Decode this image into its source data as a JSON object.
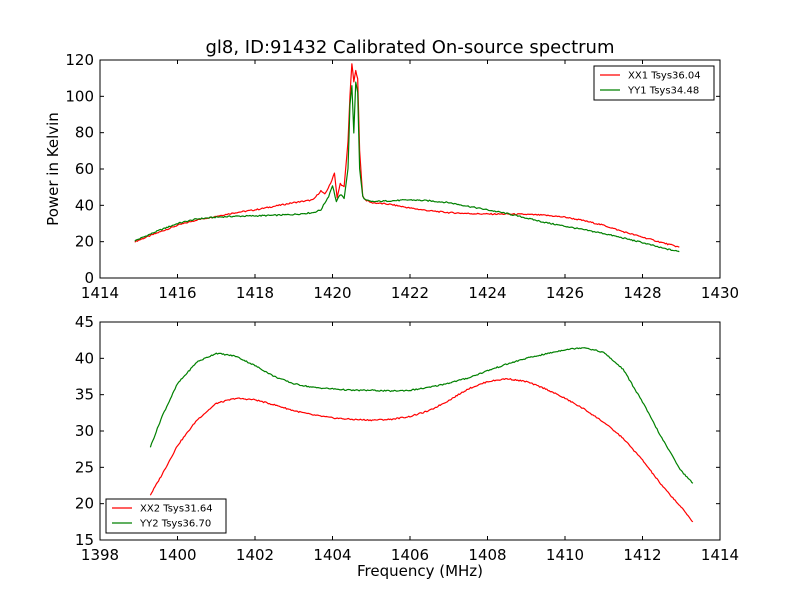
{
  "title": "gl8, ID:91432 Calibrated On-source spectrum",
  "colors": {
    "xx": "#ff0000",
    "yy": "#008000",
    "axes": "#000000"
  },
  "chart_data": [
    {
      "type": "line",
      "ylabel": "Power in Kelvin",
      "xlabel": "",
      "xlim": [
        1414,
        1430
      ],
      "ylim": [
        0,
        120
      ],
      "xticks": [
        1414,
        1416,
        1418,
        1420,
        1422,
        1424,
        1426,
        1428,
        1430
      ],
      "yticks": [
        0,
        20,
        40,
        60,
        80,
        100,
        120
      ],
      "legend_position": "top-right",
      "series": [
        {
          "name": "XX1 Tsys36.04",
          "color": "#ff0000",
          "x": [
            1414.9,
            1415.5,
            1416.0,
            1416.5,
            1417.0,
            1417.5,
            1418.0,
            1418.5,
            1419.0,
            1419.5,
            1419.7,
            1419.8,
            1419.95,
            1420.05,
            1420.12,
            1420.2,
            1420.3,
            1420.4,
            1420.45,
            1420.5,
            1420.55,
            1420.6,
            1420.65,
            1420.7,
            1420.78,
            1420.85,
            1421.0,
            1421.5,
            1422.0,
            1422.5,
            1423.0,
            1423.5,
            1424.0,
            1424.5,
            1425.0,
            1425.5,
            1426.0,
            1426.5,
            1427.0,
            1427.5,
            1428.0,
            1428.5,
            1428.95
          ],
          "values": [
            20,
            25,
            29,
            32,
            34,
            36,
            37.5,
            39.5,
            41.5,
            43,
            48,
            46,
            52,
            58,
            44,
            52,
            50,
            75,
            100,
            118,
            108,
            114,
            110,
            70,
            45,
            43,
            41.5,
            40.5,
            38.5,
            37,
            36,
            35.5,
            35.2,
            35.2,
            35,
            34.5,
            33.5,
            31.5,
            29,
            25.5,
            22.5,
            19.5,
            17
          ]
        },
        {
          "name": "YY1 Tsys34.48",
          "color": "#008000",
          "x": [
            1414.9,
            1415.5,
            1416.0,
            1416.5,
            1417.0,
            1417.5,
            1418.0,
            1418.5,
            1419.0,
            1419.5,
            1419.7,
            1419.9,
            1420.0,
            1420.1,
            1420.2,
            1420.3,
            1420.4,
            1420.45,
            1420.5,
            1420.55,
            1420.6,
            1420.65,
            1420.7,
            1420.78,
            1420.85,
            1421.0,
            1421.5,
            1422.0,
            1422.5,
            1423.0,
            1423.5,
            1424.0,
            1424.5,
            1425.0,
            1425.5,
            1426.0,
            1426.5,
            1427.0,
            1427.5,
            1428.0,
            1428.5,
            1428.95
          ],
          "values": [
            20.5,
            26,
            30,
            32.5,
            33.5,
            34,
            34.2,
            34.5,
            35,
            36,
            37.5,
            45,
            51,
            42,
            46,
            44,
            60,
            95,
            106,
            80,
            108,
            102,
            60,
            45,
            43,
            42,
            42.5,
            43,
            42.5,
            41.5,
            39.5,
            37.5,
            35.5,
            33,
            30.5,
            28.5,
            26.5,
            24.5,
            22,
            19.5,
            16.5,
            14.5
          ]
        }
      ]
    },
    {
      "type": "line",
      "xlabel": "Frequency (MHz)",
      "ylabel": "",
      "xlim": [
        1398,
        1414
      ],
      "ylim": [
        15,
        45
      ],
      "xticks": [
        1398,
        1400,
        1402,
        1404,
        1406,
        1408,
        1410,
        1412,
        1414
      ],
      "yticks": [
        15,
        20,
        25,
        30,
        35,
        40,
        45
      ],
      "legend_position": "bottom-left",
      "series": [
        {
          "name": "XX2 Tsys31.64",
          "color": "#ff0000",
          "x": [
            1399.3,
            1399.6,
            1400.0,
            1400.5,
            1401.0,
            1401.5,
            1402.0,
            1402.5,
            1403.0,
            1403.5,
            1404.0,
            1404.5,
            1405.0,
            1405.5,
            1406.0,
            1406.5,
            1407.0,
            1407.5,
            1408.0,
            1408.5,
            1409.0,
            1409.5,
            1410.0,
            1410.5,
            1411.0,
            1411.5,
            1412.0,
            1412.5,
            1413.0,
            1413.3
          ],
          "values": [
            21.2,
            24,
            28,
            31.5,
            33.8,
            34.5,
            34.3,
            33.6,
            32.8,
            32.2,
            31.8,
            31.6,
            31.5,
            31.6,
            32,
            32.8,
            34.2,
            35.8,
            36.8,
            37.2,
            36.8,
            35.8,
            34.5,
            33,
            31.2,
            29,
            26,
            22.5,
            19.5,
            17.5
          ]
        },
        {
          "name": "YY2 Tsys36.70",
          "color": "#008000",
          "x": [
            1399.3,
            1399.6,
            1400.0,
            1400.5,
            1401.0,
            1401.5,
            1402.0,
            1402.5,
            1403.0,
            1403.5,
            1404.0,
            1404.5,
            1405.0,
            1405.5,
            1406.0,
            1406.5,
            1407.0,
            1407.5,
            1408.0,
            1408.5,
            1409.0,
            1409.5,
            1410.0,
            1410.5,
            1411.0,
            1411.5,
            1412.0,
            1412.5,
            1413.0,
            1413.3
          ],
          "values": [
            27.8,
            32,
            36.5,
            39.5,
            40.7,
            40.3,
            39,
            37.5,
            36.5,
            36,
            35.8,
            35.6,
            35.6,
            35.5,
            35.6,
            36,
            36.6,
            37.3,
            38.3,
            39.2,
            40,
            40.6,
            41.2,
            41.5,
            40.8,
            38.5,
            34,
            29,
            24.5,
            22.8
          ]
        }
      ]
    }
  ]
}
